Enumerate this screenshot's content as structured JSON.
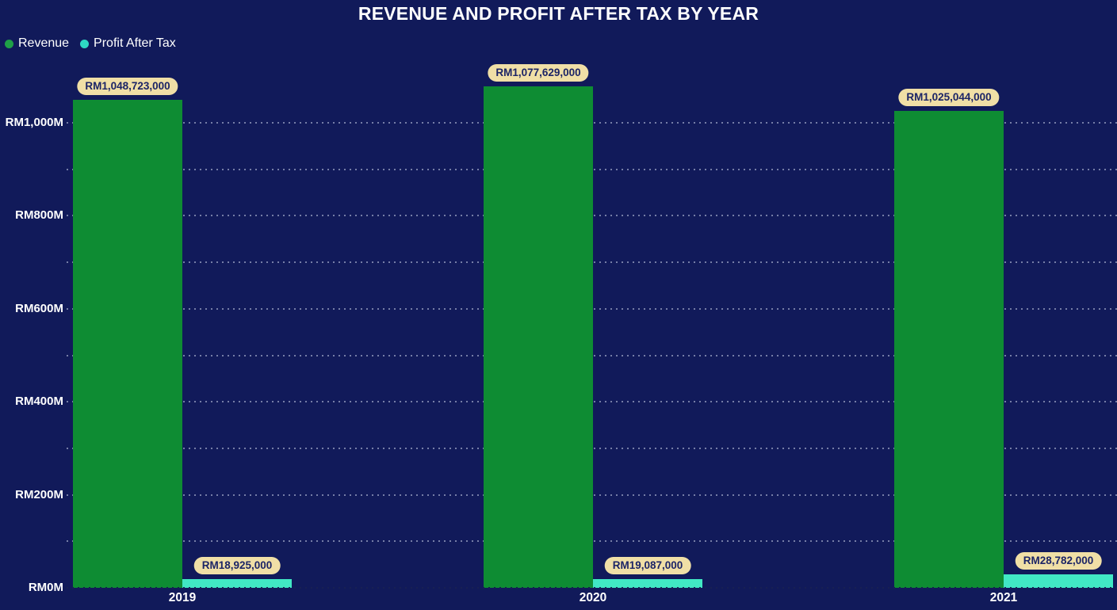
{
  "title": "REVENUE AND PROFIT AFTER TAX BY YEAR",
  "colors": {
    "background": "#111A5A",
    "title_text": "#FFFFFF",
    "axis_text": "#FFFFFF",
    "gridline": "#CAD0E6",
    "revenue_bar": "#0E8C33",
    "profit_bar": "#41E8C4",
    "data_label_bg": "#F0DFA6",
    "data_label_text": "#1B2466"
  },
  "legend": {
    "items": [
      {
        "label": "Revenue",
        "color": "#1FA047"
      },
      {
        "label": "Profit After Tax",
        "color": "#2ED9C3"
      }
    ]
  },
  "chart_data": {
    "type": "bar",
    "title": "REVENUE AND PROFIT AFTER TAX BY YEAR",
    "categories": [
      "2019",
      "2020",
      "2021"
    ],
    "series": [
      {
        "name": "Revenue",
        "color": "#0E8C33",
        "values": [
          1048723000,
          1077629000,
          1025044000
        ],
        "data_labels": [
          "RM1,048,723,000",
          "RM1,077,629,000",
          "RM1,025,044,000"
        ]
      },
      {
        "name": "Profit After Tax",
        "color": "#41E8C4",
        "values": [
          18925000,
          19087000,
          28782000
        ],
        "data_labels": [
          "RM18,925,000",
          "RM19,087,000",
          "RM28,782,000"
        ]
      }
    ],
    "xlabel": "",
    "ylabel": "",
    "y_axis": {
      "tick_labels": [
        "RM0M",
        "RM200M",
        "RM400M",
        "RM600M",
        "RM800M",
        "RM1,000M"
      ],
      "tick_values": [
        0,
        200000000,
        400000000,
        600000000,
        800000000,
        1000000000
      ],
      "gridline_step": 100000000,
      "ylim": [
        0,
        1100000000
      ]
    },
    "legend_position": "top-left",
    "grid": "dotted-horizontal"
  }
}
